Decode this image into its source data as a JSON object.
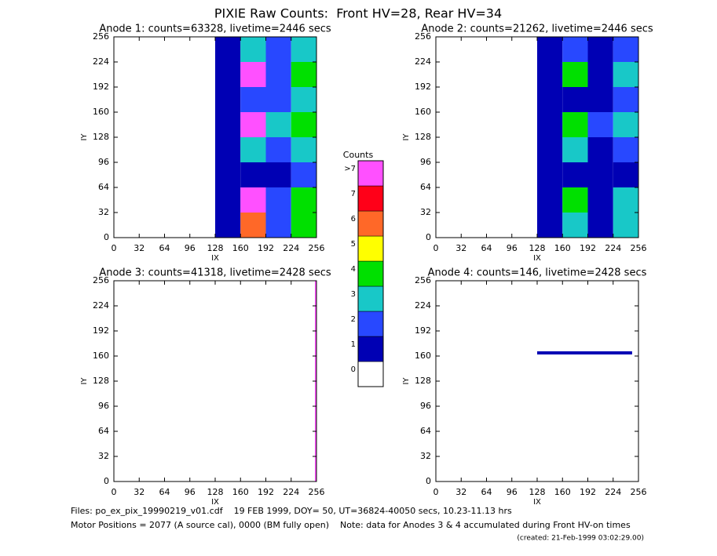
{
  "title": "PIXIE Raw Counts:  Front HV=28, Rear HV=34",
  "chart_data": [
    {
      "type": "heatmap",
      "title": "Anode 1: counts=63328, livetime=2446 secs",
      "xlabel": "IX",
      "ylabel": "IY",
      "xlim": [
        0,
        256
      ],
      "ylim": [
        0,
        256
      ],
      "xticks": [
        0,
        32,
        64,
        96,
        128,
        160,
        192,
        224,
        256
      ],
      "yticks": [
        0,
        32,
        64,
        96,
        128,
        160,
        192,
        224,
        256
      ],
      "x_edges": [
        0,
        32,
        64,
        96,
        128,
        160,
        192,
        224,
        256
      ],
      "y_edges": [
        0,
        32,
        64,
        96,
        128,
        160,
        192,
        224,
        256
      ],
      "counts": [
        [
          0,
          0,
          0,
          0,
          1,
          6,
          2,
          4
        ],
        [
          0,
          0,
          0,
          0,
          1,
          8,
          2,
          4
        ],
        [
          0,
          0,
          0,
          0,
          1,
          1,
          1,
          2
        ],
        [
          0,
          0,
          0,
          0,
          1,
          3,
          2,
          3
        ],
        [
          0,
          0,
          0,
          0,
          1,
          8,
          3,
          4
        ],
        [
          0,
          0,
          0,
          0,
          1,
          2,
          2,
          3
        ],
        [
          0,
          0,
          0,
          0,
          1,
          8,
          2,
          4
        ],
        [
          0,
          0,
          0,
          0,
          1,
          3,
          2,
          3
        ]
      ]
    },
    {
      "type": "heatmap",
      "title": "Anode 2: counts=21262, livetime=2446 secs",
      "xlabel": "IX",
      "ylabel": "IY",
      "xlim": [
        0,
        256
      ],
      "ylim": [
        0,
        256
      ],
      "xticks": [
        0,
        32,
        64,
        96,
        128,
        160,
        192,
        224,
        256
      ],
      "yticks": [
        0,
        32,
        64,
        96,
        128,
        160,
        192,
        224,
        256
      ],
      "x_edges": [
        0,
        32,
        64,
        96,
        128,
        160,
        192,
        224,
        256
      ],
      "y_edges": [
        0,
        32,
        64,
        96,
        128,
        160,
        192,
        224,
        256
      ],
      "counts": [
        [
          0,
          0,
          0,
          0,
          1,
          3,
          1,
          3
        ],
        [
          0,
          0,
          0,
          0,
          1,
          4,
          1,
          3
        ],
        [
          0,
          0,
          0,
          0,
          1,
          1,
          1,
          1
        ],
        [
          0,
          0,
          0,
          0,
          1,
          3,
          1,
          2
        ],
        [
          0,
          0,
          0,
          0,
          1,
          4,
          2,
          3
        ],
        [
          0,
          0,
          0,
          0,
          1,
          1,
          1,
          2
        ],
        [
          0,
          0,
          0,
          0,
          1,
          4,
          1,
          3
        ],
        [
          0,
          0,
          0,
          0,
          1,
          2,
          1,
          2
        ]
      ]
    },
    {
      "type": "heatmap",
      "title": "Anode 3: counts=41318, livetime=2428 secs",
      "xlabel": "IX",
      "ylabel": "IY",
      "xlim": [
        0,
        256
      ],
      "ylim": [
        0,
        256
      ],
      "xticks": [
        0,
        32,
        64,
        96,
        128,
        160,
        192,
        224,
        256
      ],
      "yticks": [
        0,
        32,
        64,
        96,
        128,
        160,
        192,
        224,
        256
      ],
      "x_edges": [
        0,
        254,
        256
      ],
      "y_edges": [
        0,
        256
      ],
      "counts": [
        [
          0,
          8
        ]
      ]
    },
    {
      "type": "heatmap",
      "title": "Anode 4: counts=146, livetime=2428 secs",
      "xlabel": "IX",
      "ylabel": "IY",
      "xlim": [
        0,
        256
      ],
      "ylim": [
        0,
        256
      ],
      "xticks": [
        0,
        32,
        64,
        96,
        128,
        160,
        192,
        224,
        256
      ],
      "yticks": [
        0,
        32,
        64,
        96,
        128,
        160,
        192,
        224,
        256
      ],
      "x_edges": [
        0,
        128,
        248,
        256
      ],
      "y_edges": [
        0,
        162,
        166,
        256
      ],
      "counts": [
        [
          0,
          0,
          0
        ],
        [
          0,
          1,
          0
        ],
        [
          0,
          0,
          0
        ]
      ]
    }
  ],
  "colorbar": {
    "title": "Counts",
    "levels": [
      0,
      1,
      2,
      3,
      4,
      5,
      6,
      7,
      {
        "value": 8,
        "label": ">7"
      }
    ],
    "colors": [
      "#ffffff",
      "#0000b4",
      "#2848ff",
      "#18c8c8",
      "#00e000",
      "#ffff00",
      "#ff6828",
      "#ff0018",
      "#ff50ff"
    ]
  },
  "footer": [
    "Files: po_ex_pix_19990219_v01.cdf    19 FEB 1999, DOY= 50, UT=36824-40050 secs, 10.23-11.13 hrs",
    "Motor Positions = 2077 (A source cal), 0000 (BM fully open)    Note: data for Anodes 3 & 4 accumulated during Front HV-on times",
    "(created: 21-Feb-1999 03:02:29.00)"
  ]
}
